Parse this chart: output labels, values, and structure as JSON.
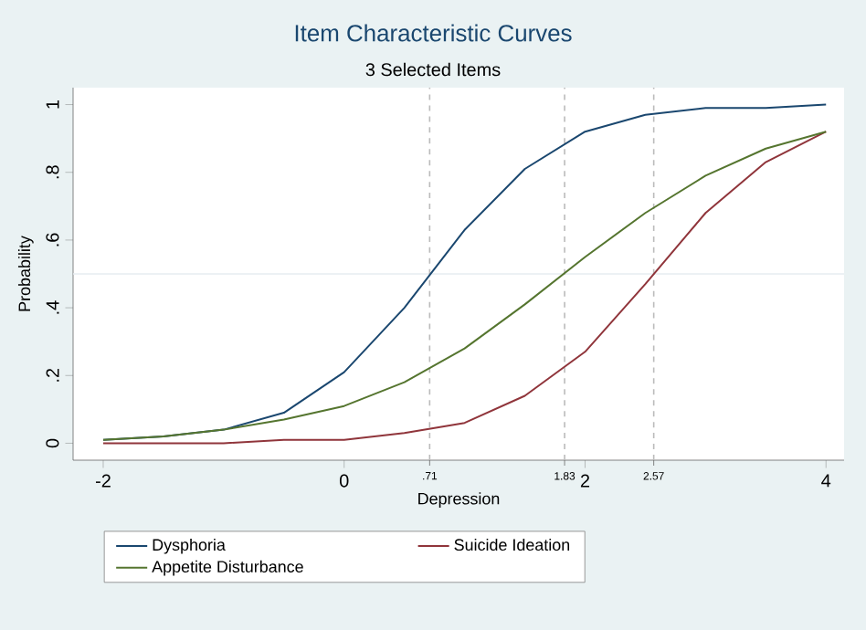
{
  "chart_data": {
    "type": "line",
    "title": "Item Characteristic Curves",
    "subtitle": "3 Selected Items",
    "xlabel": "Depression",
    "ylabel": "Probability",
    "x": [
      -2,
      -1.5,
      -1,
      -0.5,
      0,
      0.5,
      1,
      1.5,
      2,
      2.5,
      3,
      3.5,
      4
    ],
    "series": [
      {
        "name": "Dysphoria",
        "color": "#1a476f",
        "values": [
          0.01,
          0.02,
          0.04,
          0.09,
          0.21,
          0.4,
          0.63,
          0.81,
          0.92,
          0.97,
          0.99,
          0.99,
          1.0
        ]
      },
      {
        "name": "Suicide Ideation",
        "color": "#90353b",
        "values": [
          0.0,
          0.0,
          0.0,
          0.01,
          0.01,
          0.03,
          0.06,
          0.14,
          0.27,
          0.47,
          0.68,
          0.83,
          0.92
        ]
      },
      {
        "name": "Appetite Disturbance",
        "color": "#55752f",
        "values": [
          0.01,
          0.02,
          0.04,
          0.07,
          0.11,
          0.18,
          0.28,
          0.41,
          0.55,
          0.68,
          0.79,
          0.87,
          0.92
        ]
      }
    ],
    "xlim": [
      -2.25,
      4.15
    ],
    "ylim": [
      -0.05,
      1.05
    ],
    "xticks": [
      -2,
      0,
      2,
      4
    ],
    "yticks": [
      {
        "value": 0,
        "label": "0"
      },
      {
        "value": 0.2,
        "label": ".2"
      },
      {
        "value": 0.4,
        "label": ".4"
      },
      {
        "value": 0.6,
        "label": ".6"
      },
      {
        "value": 0.8,
        "label": ".8"
      },
      {
        "value": 1,
        "label": "1"
      }
    ],
    "ref_lines": [
      {
        "axis": "y",
        "value": 0.5,
        "label": null,
        "color": "#e6edf0",
        "line_style": "solid"
      },
      {
        "axis": "x",
        "value": 0.71,
        "label": ".71",
        "color": "#bbbbbb",
        "line_style": "dashed"
      },
      {
        "axis": "x",
        "value": 1.83,
        "label": "1.83",
        "color": "#bbbbbb",
        "line_style": "dashed"
      },
      {
        "axis": "x",
        "value": 2.57,
        "label": "2.57",
        "color": "#bbbbbb",
        "line_style": "dashed"
      }
    ],
    "legend": "bottom",
    "grid": false,
    "marker": "none",
    "line_style": "solid"
  }
}
